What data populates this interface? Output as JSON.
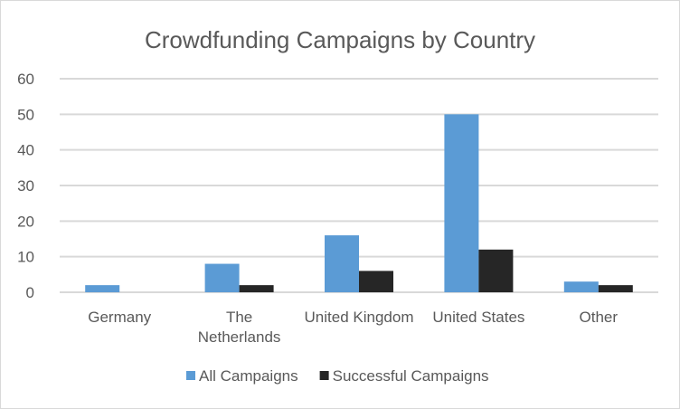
{
  "chart_data": {
    "type": "bar",
    "title": "Crowdfunding Campaigns by Country",
    "categories": [
      "Germany",
      "The Netherlands",
      "United Kingdom",
      "United States",
      "Other"
    ],
    "category_label_lines": [
      [
        "Germany"
      ],
      [
        "The",
        "Netherlands"
      ],
      [
        "United Kingdom"
      ],
      [
        "United States"
      ],
      [
        "Other"
      ]
    ],
    "series": [
      {
        "name": "All Campaigns",
        "color": "#5b9bd5",
        "values": [
          2,
          8,
          16,
          50,
          3
        ]
      },
      {
        "name": "Successful Campaigns",
        "color": "#262626",
        "values": [
          0,
          2,
          6,
          12,
          2
        ]
      }
    ],
    "ylim": [
      0,
      60
    ],
    "yticks": [
      0,
      10,
      20,
      30,
      40,
      50,
      60
    ],
    "grid": true,
    "legend": "bottom",
    "xlabel": "",
    "ylabel": ""
  }
}
